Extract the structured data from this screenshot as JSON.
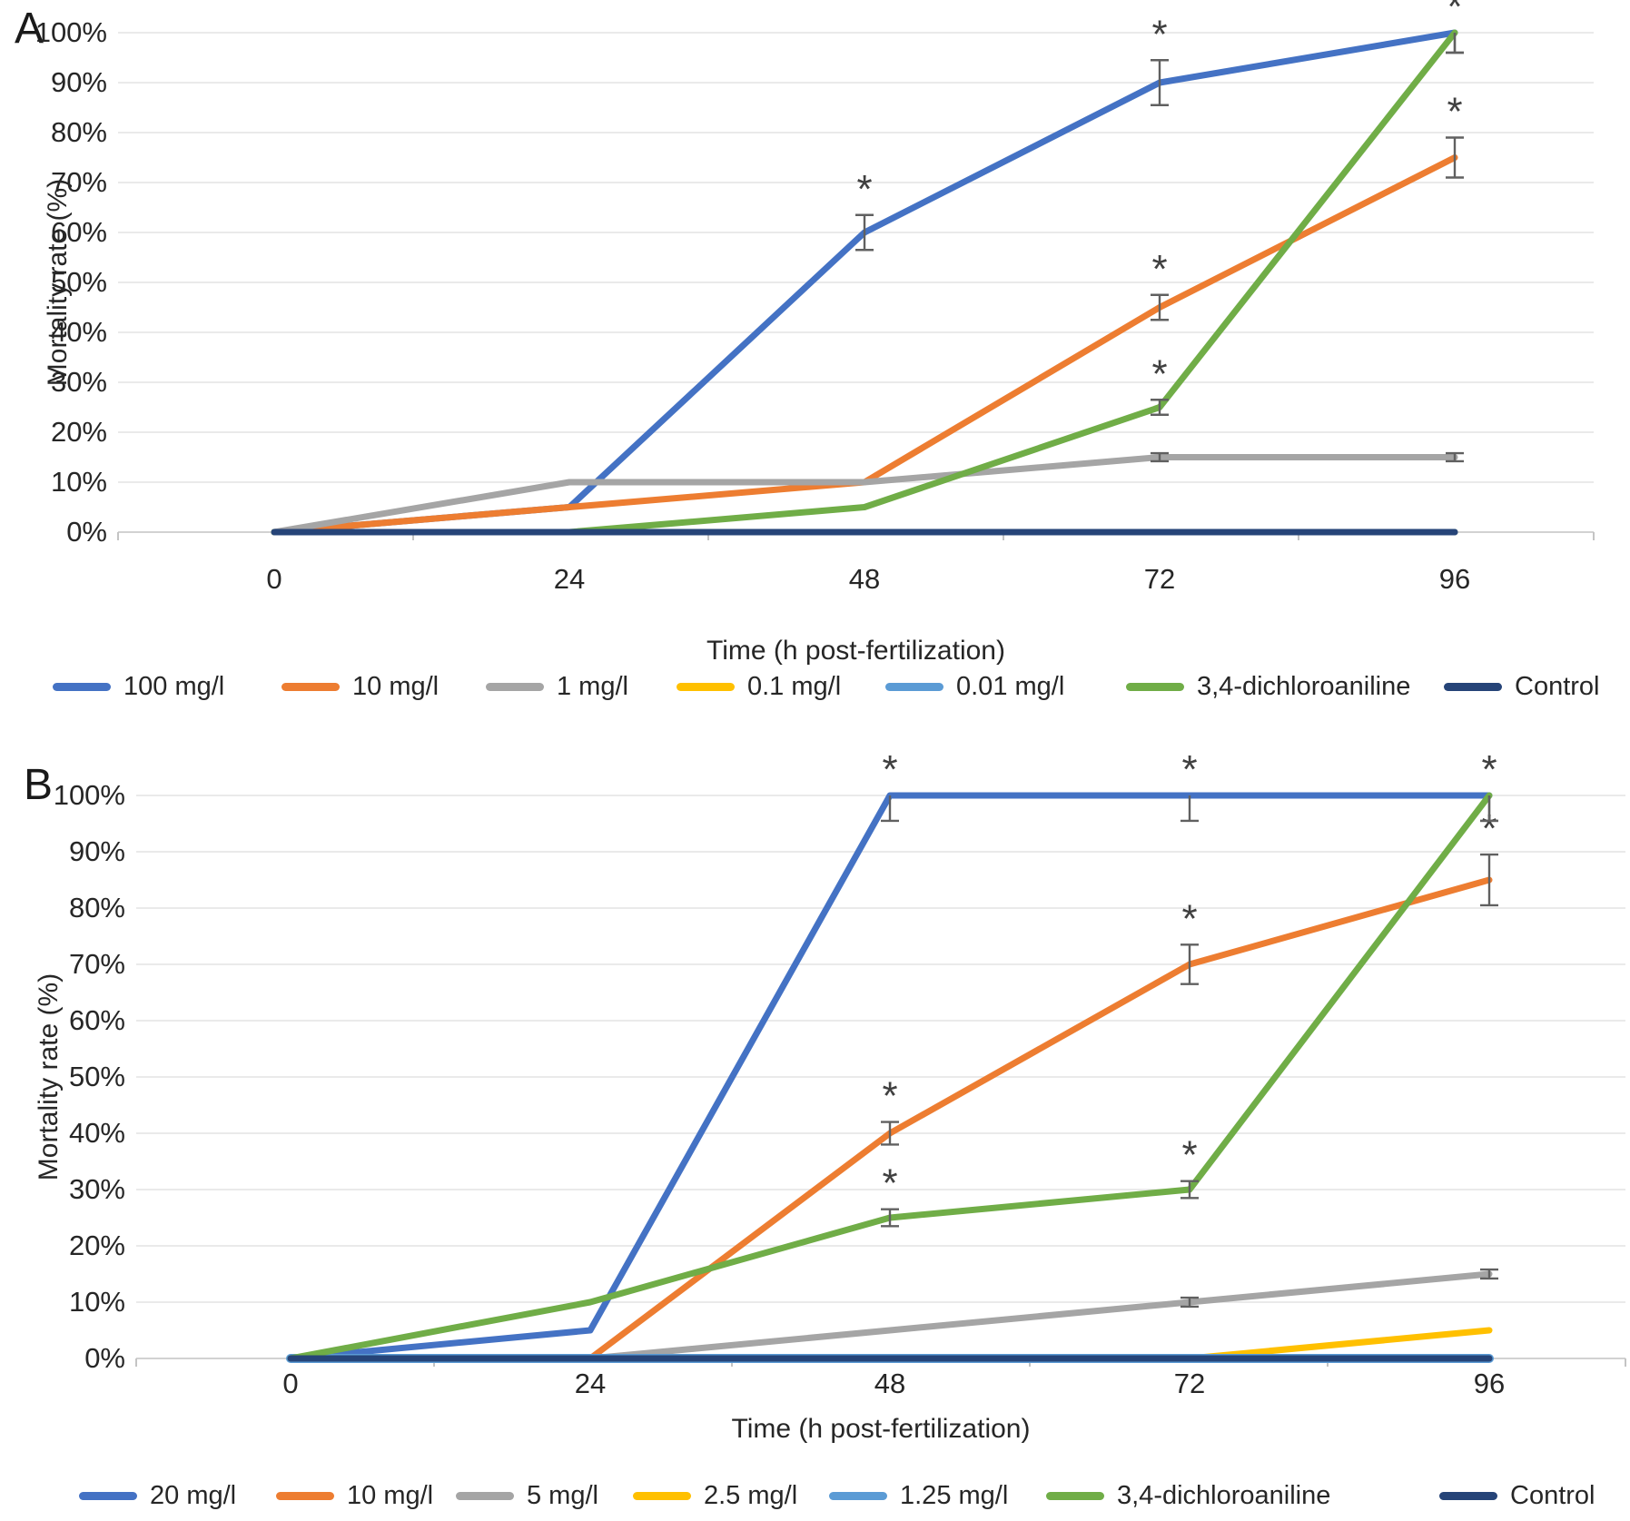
{
  "panel_letters": [
    "A",
    "B"
  ],
  "chart_data": [
    {
      "type": "line",
      "panel": "A",
      "xlabel": "Time (h post-fertilization)",
      "ylabel": "Mortality rate (%)",
      "x": [
        0,
        24,
        48,
        72,
        96
      ],
      "x_tick_labels": [
        "0",
        "24",
        "48",
        "72",
        "96"
      ],
      "ylim": [
        0,
        100
      ],
      "y_tick_labels": [
        "100%",
        "90%",
        "80%",
        "70%",
        "60%",
        "50%",
        "40%",
        "30%",
        "20%",
        "10%",
        "0%"
      ],
      "grid": "horizontal",
      "legend_position": "bottom",
      "series": [
        {
          "name": "100 mg/l",
          "color": "#4472C4",
          "values": [
            0,
            5,
            60,
            90,
            100
          ],
          "error_bars": [
            {
              "x": 48,
              "minus": 3.5,
              "plus": 3.5
            },
            {
              "x": 72,
              "minus": 4.5,
              "plus": 4.5
            },
            {
              "x": 96,
              "minus": 4,
              "plus": 0
            }
          ],
          "asterisks_x": [
            48,
            72,
            96
          ]
        },
        {
          "name": "10 mg/l",
          "color": "#ED7D31",
          "values": [
            0,
            5,
            10,
            45,
            75
          ],
          "error_bars": [
            {
              "x": 72,
              "minus": 2.5,
              "plus": 2.5
            },
            {
              "x": 96,
              "minus": 4,
              "plus": 4
            }
          ],
          "asterisks_x": [
            72,
            96
          ]
        },
        {
          "name": "1 mg/l",
          "color": "#A5A5A5",
          "values": [
            0,
            10,
            10,
            15,
            15
          ],
          "error_bars": [
            {
              "x": 72,
              "minus": 0.8,
              "plus": 0.8
            },
            {
              "x": 96,
              "minus": 0.8,
              "plus": 0.8
            }
          ],
          "asterisks_x": []
        },
        {
          "name": "0.1 mg/l",
          "color": "#FFC000",
          "values": [
            0,
            0,
            0,
            0,
            0
          ],
          "error_bars": [],
          "asterisks_x": []
        },
        {
          "name": "0.01 mg/l",
          "color": "#5B9BD5",
          "values": [
            0,
            0,
            0,
            0,
            0
          ],
          "error_bars": [],
          "asterisks_x": []
        },
        {
          "name": "3,4-dichloroaniline",
          "color": "#70AD47",
          "values": [
            0,
            0,
            5,
            25,
            100
          ],
          "error_bars": [
            {
              "x": 72,
              "minus": 1.5,
              "plus": 1.5
            },
            {
              "x": 96,
              "minus": 4,
              "plus": 0
            }
          ],
          "asterisks_x": [
            72
          ]
        },
        {
          "name": "Control",
          "color": "#264478",
          "values": [
            0,
            0,
            0,
            0,
            0
          ],
          "error_bars": [],
          "asterisks_x": []
        }
      ]
    },
    {
      "type": "line",
      "panel": "B",
      "xlabel": "Time (h post-fertilization)",
      "ylabel": "Mortality rate (%)",
      "x": [
        0,
        24,
        48,
        72,
        96
      ],
      "x_tick_labels": [
        "0",
        "24",
        "48",
        "72",
        "96"
      ],
      "ylim": [
        0,
        100
      ],
      "y_tick_labels": [
        "100%",
        "90%",
        "80%",
        "70%",
        "60%",
        "50%",
        "40%",
        "30%",
        "20%",
        "10%",
        "0%"
      ],
      "grid": "horizontal",
      "legend_position": "bottom",
      "series": [
        {
          "name": "20 mg/l",
          "color": "#4472C4",
          "values": [
            0,
            5,
            100,
            100,
            100
          ],
          "error_bars": [
            {
              "x": 48,
              "minus": 4.5,
              "plus": 0
            },
            {
              "x": 72,
              "minus": 4.5,
              "plus": 0
            },
            {
              "x": 96,
              "minus": 4.5,
              "plus": 0
            }
          ],
          "asterisks_x": [
            48,
            72,
            96
          ]
        },
        {
          "name": "10 mg/l",
          "color": "#ED7D31",
          "values": [
            0,
            0,
            40,
            70,
            85
          ],
          "error_bars": [
            {
              "x": 48,
              "minus": 2,
              "plus": 2
            },
            {
              "x": 72,
              "minus": 3.5,
              "plus": 3.5
            },
            {
              "x": 96,
              "minus": 4.5,
              "plus": 4.5
            }
          ],
          "asterisks_x": [
            48,
            72,
            96
          ]
        },
        {
          "name": "5 mg/l",
          "color": "#A5A5A5",
          "values": [
            0,
            0,
            5,
            10,
            15
          ],
          "error_bars": [
            {
              "x": 72,
              "minus": 0.8,
              "plus": 0.8
            },
            {
              "x": 96,
              "minus": 0.8,
              "plus": 0.8
            }
          ],
          "asterisks_x": []
        },
        {
          "name": "2.5 mg/l",
          "color": "#FFC000",
          "values": [
            0,
            0,
            0,
            0,
            5
          ],
          "error_bars": [],
          "asterisks_x": []
        },
        {
          "name": "1.25 mg/l",
          "color": "#5B9BD5",
          "values": [
            0,
            0,
            0,
            0,
            0
          ],
          "error_bars": [],
          "asterisks_x": []
        },
        {
          "name": "3,4-dichloroaniline",
          "color": "#70AD47",
          "values": [
            0,
            10,
            25,
            30,
            100
          ],
          "error_bars": [
            {
              "x": 48,
              "minus": 1.5,
              "plus": 1.5
            },
            {
              "x": 72,
              "minus": 1.5,
              "plus": 1.5
            },
            {
              "x": 96,
              "minus": 4.5,
              "plus": 0
            }
          ],
          "asterisks_x": [
            48,
            72
          ]
        },
        {
          "name": "Control",
          "color": "#264478",
          "values": [
            0,
            0,
            0,
            0,
            0
          ],
          "error_bars": [],
          "asterisks_x": []
        }
      ]
    }
  ]
}
